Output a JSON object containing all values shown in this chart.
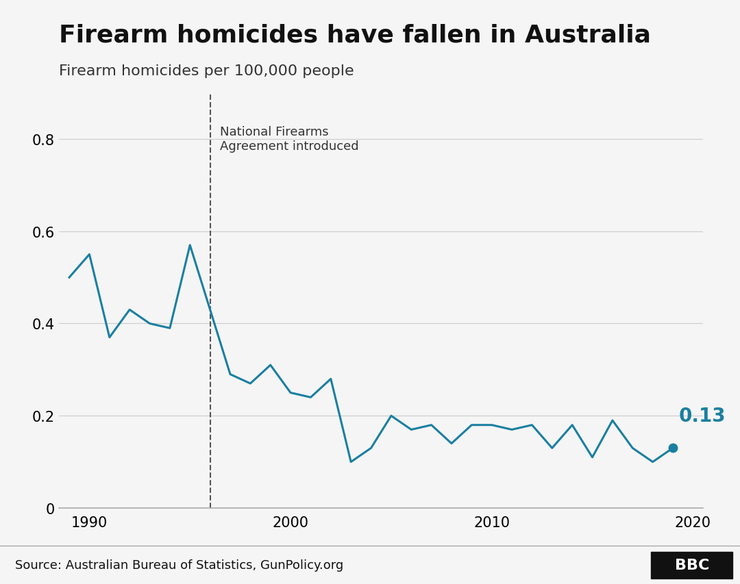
{
  "title": "Firearm homicides have fallen in Australia",
  "subtitle": "Firearm homicides per 100,000 people",
  "source": "Source: Australian Bureau of Statistics, GunPolicy.org",
  "line_color": "#1a7fa0",
  "annotation_year": 1996,
  "annotation_text": "National Firearms\nAgreement introduced",
  "last_label": "0.13",
  "last_label_color": "#1a7fa0",
  "years": [
    1989,
    1990,
    1991,
    1992,
    1993,
    1994,
    1995,
    1996,
    1997,
    1998,
    1999,
    2000,
    2001,
    2002,
    2003,
    2004,
    2005,
    2006,
    2007,
    2008,
    2009,
    2010,
    2011,
    2012,
    2013,
    2014,
    2015,
    2016,
    2017,
    2018,
    2019
  ],
  "values": [
    0.5,
    0.55,
    0.37,
    0.43,
    0.4,
    0.39,
    0.57,
    0.43,
    0.29,
    0.27,
    0.31,
    0.25,
    0.24,
    0.28,
    0.1,
    0.13,
    0.2,
    0.17,
    0.18,
    0.14,
    0.18,
    0.18,
    0.17,
    0.18,
    0.13,
    0.18,
    0.11,
    0.19,
    0.13,
    0.1,
    0.13
  ],
  "xlim": [
    1988.5,
    2020.5
  ],
  "ylim": [
    0,
    0.9
  ],
  "yticks": [
    0,
    0.2,
    0.4,
    0.6,
    0.8
  ],
  "xticks": [
    1990,
    2000,
    2010,
    2020
  ],
  "background_color": "#f5f5f5",
  "plot_bg_color": "#f5f5f5",
  "grid_color": "#cccccc",
  "dashed_line_color": "#555555",
  "title_fontsize": 26,
  "subtitle_fontsize": 16,
  "tick_fontsize": 15,
  "source_fontsize": 13,
  "annotation_fontsize": 13,
  "label_fontsize": 20
}
